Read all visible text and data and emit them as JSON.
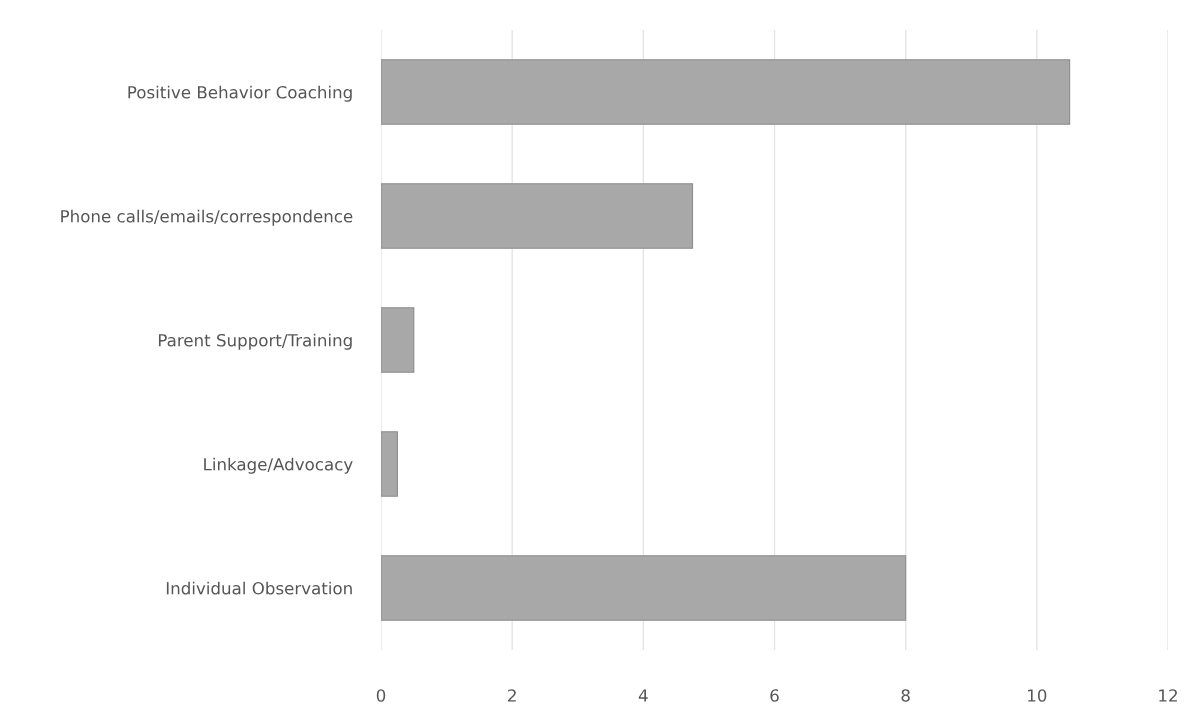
{
  "chart_data": {
    "type": "bar",
    "orientation": "horizontal",
    "categories": [
      "Positive Behavior Coaching",
      "Phone calls/emails/correspondence",
      "Parent Support/Training",
      "Linkage/Advocacy",
      "Individual Observation"
    ],
    "values": [
      10.5,
      4.75,
      0.5,
      0.25,
      8
    ],
    "color": "#a8a8a8",
    "xlim": [
      0,
      12
    ],
    "xticks": [
      0,
      2,
      4,
      6,
      8,
      10,
      12
    ],
    "grid": "x"
  }
}
